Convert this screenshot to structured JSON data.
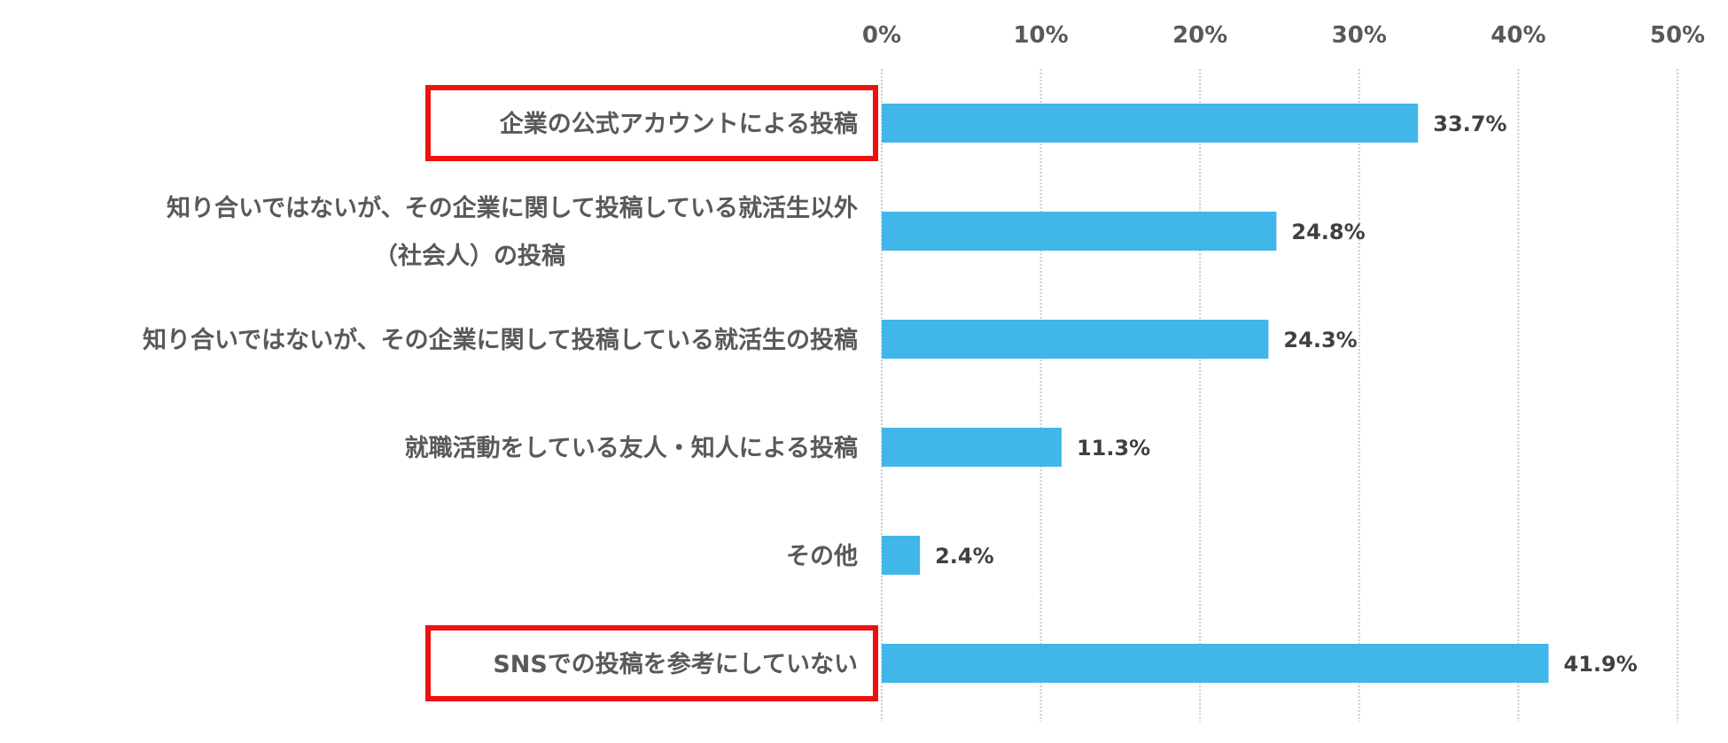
{
  "chart_data": {
    "type": "bar",
    "orientation": "horizontal",
    "categories": [
      [
        "企業の公式アカウントによる投稿"
      ],
      [
        "知り合いではないが、その企業に関して投稿している就活生以外",
        "（社会人）の投稿"
      ],
      [
        "知り合いではないが、その企業に関して投稿している就活生の投稿"
      ],
      [
        "就職活動をしている友人・知人による投稿"
      ],
      [
        "その他"
      ],
      [
        "SNSでの投稿を参考にしていない"
      ]
    ],
    "values": [
      33.7,
      24.8,
      24.3,
      11.3,
      2.4,
      41.9
    ],
    "value_labels": [
      "33.7%",
      "24.8%",
      "24.3%",
      "11.3%",
      "2.4%",
      "41.9%"
    ],
    "x_ticks": [
      0,
      10,
      20,
      30,
      40,
      50
    ],
    "x_tick_labels": [
      "0%",
      "10%",
      "20%",
      "30%",
      "40%",
      "50%"
    ],
    "xlim": [
      0,
      50
    ],
    "axis_position": "top",
    "grid": true,
    "highlighted_categories": [
      0,
      5
    ],
    "bar_color": "#41b6e8",
    "highlight_color": "#ee1111",
    "grid_color": "#cccccc",
    "text_color": "#595959"
  }
}
